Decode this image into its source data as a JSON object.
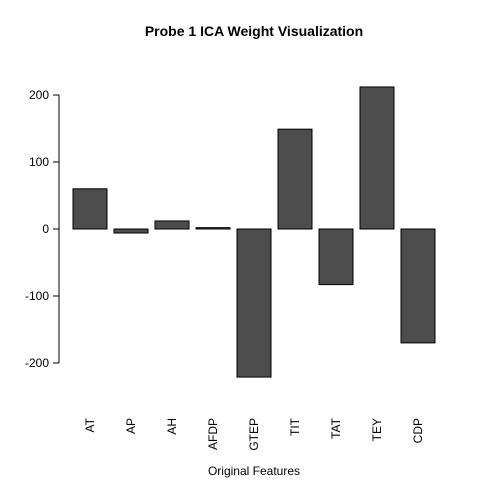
{
  "chart_data": {
    "type": "bar",
    "title": "Probe 1 ICA Weight Visualization",
    "xlabel": "Original Features",
    "ylabel": "",
    "categories": [
      "AT",
      "AP",
      "AH",
      "AFDP",
      "GTEP",
      "TIT",
      "TAT",
      "TEY",
      "CDP"
    ],
    "values": [
      60,
      -6,
      12,
      2,
      -221,
      149,
      -83,
      212,
      -170
    ],
    "ylim": [
      -250,
      240
    ],
    "yticks": [
      -200,
      -100,
      0,
      100,
      200
    ],
    "grid": false,
    "legend": "none",
    "bar_color": "#4d4d4d",
    "bar_stroke": "#000000"
  }
}
